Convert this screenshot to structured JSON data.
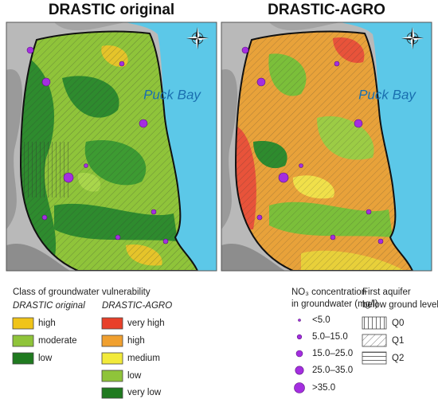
{
  "titles": {
    "left": "DRASTIC original",
    "right": "DRASTIC-AGRO"
  },
  "map_labels": [
    "Puck Bay",
    "Puck Bay"
  ],
  "legend": {
    "vulnerability": {
      "title": "Class of groundwater vulnerability",
      "drastic_original": {
        "title": "DRASTIC original",
        "classes": [
          "high",
          "moderate",
          "low"
        ]
      },
      "drastic_agro": {
        "title": "DRASTIC-AGRO",
        "classes": [
          "very high",
          "high",
          "medium",
          "low",
          "very low"
        ]
      }
    },
    "nitrate": {
      "title_line1": "NO₃ concentration",
      "title_line2": "in groundwater (mg/l)",
      "classes": [
        "<5.0",
        "5.0–15.0",
        "15.0–25.0",
        "25.0–35.0",
        ">35.0"
      ]
    },
    "aquifer": {
      "title_line1": "First aquifer",
      "title_line2": "below ground level",
      "classes": [
        "Q0",
        "Q1",
        "Q2"
      ]
    }
  }
}
